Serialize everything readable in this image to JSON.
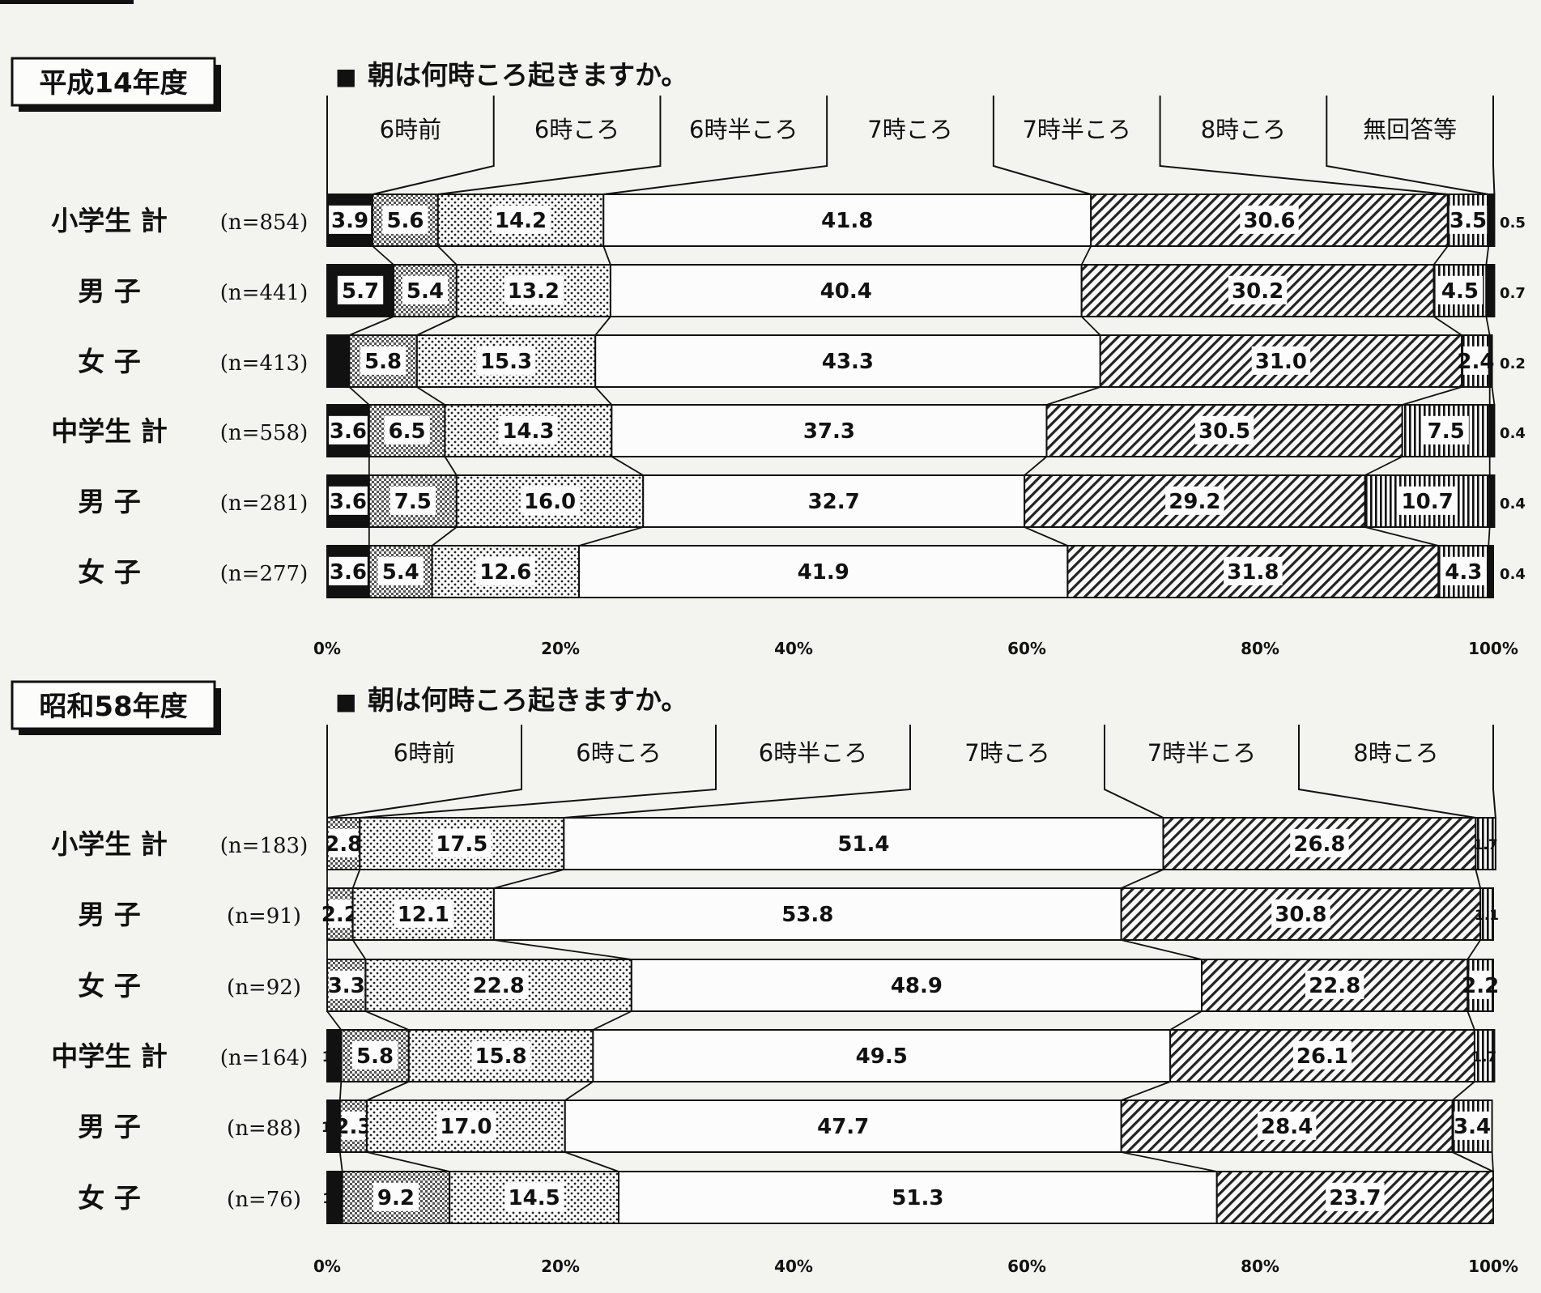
{
  "chart_data": [
    {
      "type": "bar",
      "stacked": "percent",
      "orientation": "horizontal",
      "era": "平成14年度",
      "title": "朝は何時ころ起きますか。",
      "title_marker": "■",
      "series": [
        {
          "name": "6時前",
          "pattern": "black",
          "values": [
            3.9,
            5.7,
            1.9,
            3.6,
            3.6,
            3.6
          ]
        },
        {
          "name": "6時ころ",
          "pattern": "dense",
          "values": [
            5.6,
            5.4,
            5.8,
            6.5,
            7.5,
            5.4
          ]
        },
        {
          "name": "6時半ころ",
          "pattern": "dots",
          "values": [
            14.2,
            13.2,
            15.3,
            14.3,
            16.0,
            12.6
          ]
        },
        {
          "name": "7時ころ",
          "pattern": "white",
          "values": [
            41.8,
            40.4,
            43.3,
            37.3,
            32.7,
            41.9
          ]
        },
        {
          "name": "7時半ころ",
          "pattern": "hatch",
          "values": [
            30.6,
            30.2,
            31.0,
            30.5,
            29.2,
            31.8
          ]
        },
        {
          "name": "8時ころ",
          "pattern": "vstripe",
          "values": [
            3.5,
            4.5,
            2.4,
            7.5,
            10.7,
            4.3
          ]
        },
        {
          "name": "無回答等",
          "pattern": "black",
          "values": [
            0.5,
            0.7,
            0.2,
            0.4,
            0.4,
            0.4
          ]
        }
      ],
      "rows": [
        {
          "label": "小学生 計",
          "n": "(n=854)"
        },
        {
          "label": "男 子",
          "n": "(n=441)"
        },
        {
          "label": "女 子",
          "n": "(n=413)"
        },
        {
          "label": "中学生 計",
          "n": "(n=558)"
        },
        {
          "label": "男 子",
          "n": "(n=281)"
        },
        {
          "label": "女 子",
          "n": "(n=277)"
        }
      ],
      "ticks": [
        "0%",
        "20%",
        "40%",
        "60%",
        "80%",
        "100%"
      ],
      "xlim": [
        0,
        100
      ]
    },
    {
      "type": "bar",
      "stacked": "percent",
      "orientation": "horizontal",
      "era": "昭和58年度",
      "title": "朝は何時ころ起きますか。",
      "title_marker": "■",
      "series": [
        {
          "name": "6時前",
          "pattern": "black",
          "values": [
            0,
            0,
            0,
            1.2,
            1.1,
            1.3
          ]
        },
        {
          "name": "6時ころ",
          "pattern": "dense",
          "values": [
            2.8,
            2.2,
            3.3,
            5.8,
            2.3,
            9.2
          ]
        },
        {
          "name": "6時半ころ",
          "pattern": "dots",
          "values": [
            17.5,
            12.1,
            22.8,
            15.8,
            17.0,
            14.5
          ]
        },
        {
          "name": "7時ころ",
          "pattern": "white",
          "values": [
            51.4,
            53.8,
            48.9,
            49.5,
            47.7,
            51.3
          ]
        },
        {
          "name": "7時半ころ",
          "pattern": "hatch",
          "values": [
            26.8,
            30.8,
            22.8,
            26.1,
            28.4,
            23.7
          ]
        },
        {
          "name": "8時ころ",
          "pattern": "vstripe",
          "values": [
            1.7,
            1.1,
            2.2,
            1.7,
            3.4,
            0
          ]
        }
      ],
      "rows": [
        {
          "label": "小学生 計",
          "n": "(n=183)"
        },
        {
          "label": "男 子",
          "n": "(n=91)"
        },
        {
          "label": "女 子",
          "n": "(n=92)"
        },
        {
          "label": "中学生 計",
          "n": "(n=164)"
        },
        {
          "label": "男 子",
          "n": "(n=88)"
        },
        {
          "label": "女 子",
          "n": "(n=76)"
        }
      ],
      "ticks": [
        "0%",
        "20%",
        "40%",
        "60%",
        "80%",
        "100%"
      ],
      "xlim": [
        0,
        100
      ]
    }
  ]
}
